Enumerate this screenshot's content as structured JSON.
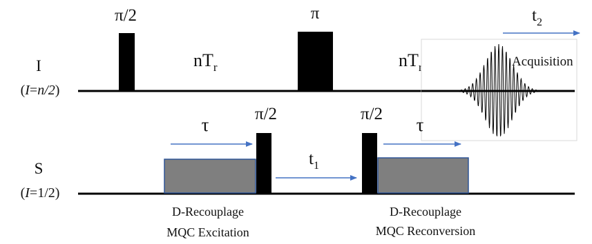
{
  "channels": {
    "i": {
      "label": "I",
      "spin_prefix": "(",
      "spin_italic": "I",
      "spin_eq": "=",
      "spin_value": "n/2",
      "spin_suffix": ")"
    },
    "s": {
      "label": "S",
      "spin_prefix": "(",
      "spin_italic": "I",
      "spin_eq": "=",
      "spin_value": "1/2",
      "spin_suffix": ")"
    }
  },
  "pulses": {
    "i_first": "π/2",
    "i_second": "π",
    "s_first": "π/2",
    "s_second": "π/2"
  },
  "delays": {
    "nt1_main": "nT",
    "nt1_sub": "r",
    "nt2_main": "nT",
    "nt2_sub": "r",
    "tau1": "τ",
    "tau2": "τ",
    "t1_main": "t",
    "t1_sub": "1",
    "t2_main": "t",
    "t2_sub": "2"
  },
  "blocks": {
    "excitation_line1": "D-Recouplage",
    "excitation_line2": "MQC Excitation",
    "reconversion_line1": "D-Recouplage",
    "reconversion_line2": "MQC Reconversion"
  },
  "acquisition_label": "Acquisition",
  "colors": {
    "pulse": "#000000",
    "recoupling_block": "#7f7f7f",
    "block_border": "#2f5597",
    "arrow": "#4472c4"
  }
}
